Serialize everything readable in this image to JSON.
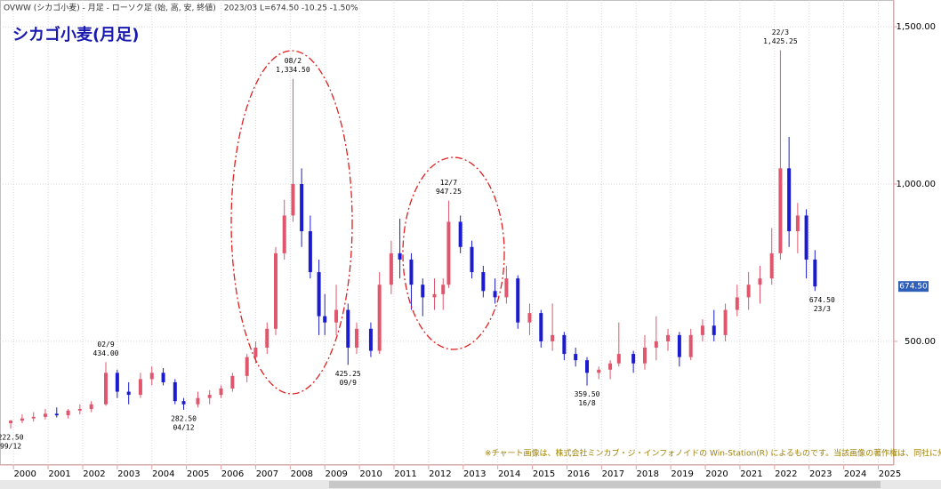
{
  "chart_data": {
    "type": "candlestick",
    "header": "OVWW (シカゴ小麦) - 月足 - ローソク足 (始, 高, 安, 終値)　2023/03 L=674.50 -10.25 -1.50%",
    "title": "シカゴ小麦(月足)",
    "note": "※チャート画像は、株式会社ミンカブ・ジ・インフォノイドの Win-Station(R) によるものです。当該画像の著作権は、同社に帰属します。",
    "up_color": "#e0566c",
    "down_color": "#1b1bd0",
    "grid": true,
    "xlim": [
      1999.61,
      2025.45
    ],
    "xticks": [
      2000,
      2001,
      2002,
      2003,
      2004,
      2005,
      2006,
      2007,
      2008,
      2009,
      2010,
      2011,
      2012,
      2013,
      2014,
      2015,
      2016,
      2017,
      2018,
      2019,
      2020,
      2021,
      2022,
      2023,
      2024,
      2025
    ],
    "ylim": [
      107,
      1585
    ],
    "yticks": [
      {
        "value": 500,
        "label": "500.00"
      },
      {
        "value": 1000,
        "label": "1,000.00"
      },
      {
        "value": 1500,
        "label": "1,500.00"
      }
    ],
    "x": [
      1999.92,
      2000.25,
      2000.58,
      2000.92,
      2001.25,
      2001.58,
      2001.92,
      2002.25,
      2002.67,
      2003.0,
      2003.33,
      2003.67,
      2004.0,
      2004.33,
      2004.67,
      2004.92,
      2005.33,
      2005.67,
      2006.0,
      2006.33,
      2006.75,
      2007.0,
      2007.33,
      2007.58,
      2007.83,
      2008.08,
      2008.33,
      2008.58,
      2008.83,
      2009.0,
      2009.33,
      2009.67,
      2009.92,
      2010.33,
      2010.58,
      2010.92,
      2011.17,
      2011.5,
      2011.83,
      2012.17,
      2012.42,
      2012.58,
      2012.92,
      2013.25,
      2013.58,
      2013.92,
      2014.25,
      2014.58,
      2014.92,
      2015.25,
      2015.58,
      2015.92,
      2016.25,
      2016.58,
      2016.92,
      2017.25,
      2017.5,
      2017.92,
      2018.25,
      2018.58,
      2018.92,
      2019.25,
      2019.58,
      2019.92,
      2020.25,
      2020.58,
      2020.92,
      2021.25,
      2021.58,
      2021.92,
      2022.17,
      2022.42,
      2022.67,
      2022.92,
      2023.17
    ],
    "open": [
      240,
      248,
      255,
      260,
      270,
      265,
      280,
      285,
      300,
      400,
      340,
      330,
      380,
      400,
      370,
      310,
      300,
      320,
      330,
      350,
      390,
      450,
      480,
      540,
      780,
      900,
      1000,
      850,
      720,
      580,
      560,
      600,
      480,
      540,
      470,
      680,
      780,
      760,
      680,
      640,
      650,
      680,
      880,
      800,
      720,
      660,
      640,
      700,
      560,
      590,
      500,
      520,
      460,
      440,
      400,
      410,
      430,
      460,
      430,
      480,
      500,
      520,
      450,
      520,
      550,
      520,
      600,
      640,
      680,
      700,
      780,
      1050,
      850,
      900,
      760
    ],
    "high": [
      250,
      268,
      275,
      285,
      290,
      285,
      300,
      310,
      434,
      410,
      370,
      400,
      420,
      415,
      380,
      320,
      340,
      345,
      360,
      400,
      460,
      500,
      560,
      800,
      950,
      1334.5,
      1050,
      900,
      760,
      650,
      680,
      620,
      560,
      560,
      720,
      820,
      890,
      780,
      700,
      700,
      700,
      947.25,
      900,
      820,
      740,
      700,
      740,
      710,
      620,
      600,
      620,
      530,
      480,
      450,
      420,
      440,
      560,
      470,
      520,
      580,
      540,
      530,
      540,
      570,
      600,
      620,
      680,
      720,
      740,
      860,
      1425.25,
      1150,
      940,
      920,
      790
    ],
    "low": [
      222.5,
      240,
      245,
      252,
      258,
      255,
      268,
      275,
      295,
      320,
      300,
      320,
      360,
      360,
      300,
      282.5,
      290,
      300,
      320,
      340,
      370,
      430,
      460,
      520,
      760,
      880,
      800,
      700,
      520,
      520,
      520,
      425.25,
      460,
      450,
      460,
      650,
      700,
      600,
      580,
      600,
      600,
      670,
      780,
      700,
      640,
      620,
      620,
      540,
      520,
      480,
      470,
      440,
      420,
      359.5,
      380,
      380,
      420,
      400,
      410,
      440,
      470,
      420,
      440,
      500,
      500,
      500,
      580,
      600,
      620,
      680,
      760,
      800,
      780,
      700,
      660
    ],
    "close": [
      248,
      255,
      260,
      270,
      265,
      280,
      285,
      300,
      400,
      340,
      330,
      380,
      400,
      370,
      310,
      300,
      320,
      330,
      350,
      390,
      450,
      480,
      540,
      780,
      900,
      1000,
      850,
      720,
      580,
      560,
      600,
      480,
      540,
      470,
      680,
      780,
      760,
      680,
      640,
      650,
      680,
      880,
      800,
      720,
      660,
      640,
      700,
      560,
      590,
      500,
      520,
      460,
      440,
      400,
      410,
      430,
      460,
      430,
      480,
      500,
      520,
      450,
      520,
      550,
      520,
      600,
      640,
      680,
      700,
      780,
      1050,
      850,
      900,
      760,
      674.5
    ],
    "annotations": [
      {
        "date": "99/12",
        "label": "222.50",
        "value": 222.5
      },
      {
        "date": "02/9",
        "label": "434.00",
        "value": 434
      },
      {
        "date": "04/12",
        "label": "282.50",
        "value": 282.5
      },
      {
        "date": "08/2",
        "label": "1,334.50",
        "value": 1334.5
      },
      {
        "date": "09/9",
        "label": "425.25",
        "value": 425.25
      },
      {
        "date": "12/7",
        "label": "947.25",
        "value": 947.25
      },
      {
        "date": "16/8",
        "label": "359.50",
        "value": 359.5
      },
      {
        "date": "22/3",
        "label": "1,425.25",
        "value": 1425.25
      },
      {
        "date": "23/3",
        "label": "674.50",
        "value": 674.5
      }
    ],
    "last_price": {
      "value": 674.5,
      "label": "674.50"
    }
  }
}
